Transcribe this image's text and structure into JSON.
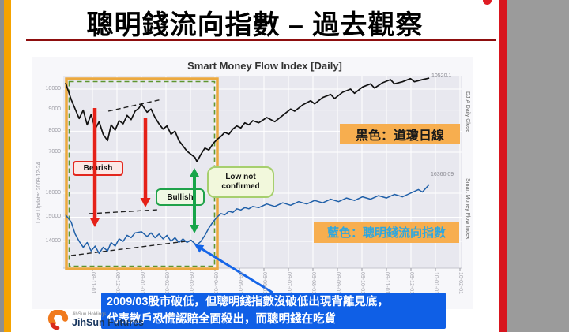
{
  "slide": {
    "title": "聰明錢流向指數 – 過去觀察"
  },
  "chart": {
    "title": "Smart Money Flow Index [Daily]",
    "left_note": "Last Update: 2009-12-24"
  },
  "chart_data": {
    "type": "line",
    "x_domain": [
      "2008-10",
      "2010-02"
    ],
    "x_ticks": [
      "08-11-01",
      "08-12-01",
      "09-01-01",
      "09-02-01",
      "09-03-01",
      "09-04-01",
      "09-05-01",
      "09-06-01",
      "09-07-01",
      "09-08-01",
      "09-09-01",
      "09-10-01",
      "09-11-01",
      "09-12-01",
      "10-01-01",
      "10-02-01"
    ],
    "top_axis": {
      "label": "DJIA Daily Close",
      "ticks": [
        10000,
        9000,
        8000,
        7000
      ],
      "last_value": "10520.1"
    },
    "bottom_axis": {
      "label": "Smart Money Flow Index",
      "ticks": [
        16000,
        15000,
        14000
      ],
      "last_value": "16360.09"
    },
    "highlight_region": {
      "x_range": [
        "2008-10",
        "2009-04"
      ],
      "note": "orange box with green dashed border around divergence period"
    },
    "series": [
      {
        "name": "DJIA Daily Close",
        "axis": "top",
        "color": "#111111",
        "points": [
          [
            0.006,
            10300
          ],
          [
            0.02,
            9500
          ],
          [
            0.04,
            8600
          ],
          [
            0.05,
            9000
          ],
          [
            0.06,
            8300
          ],
          [
            0.07,
            8800
          ],
          [
            0.08,
            8100
          ],
          [
            0.09,
            8450
          ],
          [
            0.1,
            7850
          ],
          [
            0.111,
            7550
          ],
          [
            0.12,
            8300
          ],
          [
            0.13,
            8050
          ],
          [
            0.14,
            8500
          ],
          [
            0.15,
            8350
          ],
          [
            0.16,
            8750
          ],
          [
            0.17,
            8550
          ],
          [
            0.18,
            8950
          ],
          [
            0.19,
            9100
          ],
          [
            0.196,
            9300
          ],
          [
            0.21,
            8900
          ],
          [
            0.22,
            9050
          ],
          [
            0.23,
            8650
          ],
          [
            0.24,
            8350
          ],
          [
            0.25,
            8100
          ],
          [
            0.26,
            8250
          ],
          [
            0.27,
            7850
          ],
          [
            0.28,
            8000
          ],
          [
            0.29,
            7550
          ],
          [
            0.3,
            7300
          ],
          [
            0.31,
            7050
          ],
          [
            0.32,
            6900
          ],
          [
            0.33,
            6750
          ],
          [
            0.335,
            6550
          ],
          [
            0.345,
            6900
          ],
          [
            0.355,
            7200
          ],
          [
            0.365,
            7100
          ],
          [
            0.375,
            7400
          ],
          [
            0.385,
            7600
          ],
          [
            0.395,
            7750
          ],
          [
            0.405,
            7950
          ],
          [
            0.415,
            7850
          ],
          [
            0.425,
            8100
          ],
          [
            0.435,
            8250
          ],
          [
            0.445,
            8150
          ],
          [
            0.455,
            8400
          ],
          [
            0.465,
            8300
          ],
          [
            0.475,
            8500
          ],
          [
            0.49,
            8400
          ],
          [
            0.51,
            8650
          ],
          [
            0.53,
            8450
          ],
          [
            0.55,
            8750
          ],
          [
            0.57,
            9050
          ],
          [
            0.58,
            8950
          ],
          [
            0.6,
            9250
          ],
          [
            0.62,
            9450
          ],
          [
            0.63,
            9300
          ],
          [
            0.65,
            9600
          ],
          [
            0.67,
            9750
          ],
          [
            0.68,
            9550
          ],
          [
            0.7,
            9850
          ],
          [
            0.72,
            10000
          ],
          [
            0.73,
            9800
          ],
          [
            0.75,
            10100
          ],
          [
            0.77,
            10250
          ],
          [
            0.78,
            10050
          ],
          [
            0.8,
            10300
          ],
          [
            0.82,
            10450
          ],
          [
            0.83,
            10250
          ],
          [
            0.85,
            10350
          ],
          [
            0.87,
            10500
          ],
          [
            0.88,
            10350
          ],
          [
            0.9,
            10450
          ],
          [
            0.917,
            10520
          ]
        ]
      },
      {
        "name": "Smart Money Flow Index",
        "axis": "bottom",
        "color": "#1F5FA8",
        "points": [
          [
            0.006,
            15100
          ],
          [
            0.02,
            14800
          ],
          [
            0.03,
            14300
          ],
          [
            0.04,
            14000
          ],
          [
            0.05,
            13750
          ],
          [
            0.06,
            13950
          ],
          [
            0.07,
            13600
          ],
          [
            0.08,
            13800
          ],
          [
            0.09,
            13500
          ],
          [
            0.1,
            13750
          ],
          [
            0.111,
            13600
          ],
          [
            0.12,
            13950
          ],
          [
            0.13,
            13800
          ],
          [
            0.14,
            14100
          ],
          [
            0.15,
            14000
          ],
          [
            0.16,
            14250
          ],
          [
            0.17,
            14150
          ],
          [
            0.18,
            14350
          ],
          [
            0.196,
            14400
          ],
          [
            0.21,
            14200
          ],
          [
            0.22,
            14350
          ],
          [
            0.23,
            14150
          ],
          [
            0.24,
            14300
          ],
          [
            0.25,
            14100
          ],
          [
            0.26,
            14250
          ],
          [
            0.27,
            14000
          ],
          [
            0.28,
            14150
          ],
          [
            0.29,
            13950
          ],
          [
            0.3,
            14100
          ],
          [
            0.31,
            13950
          ],
          [
            0.32,
            14050
          ],
          [
            0.33,
            13900
          ],
          [
            0.335,
            13850
          ],
          [
            0.345,
            14000
          ],
          [
            0.355,
            14250
          ],
          [
            0.365,
            14550
          ],
          [
            0.375,
            14800
          ],
          [
            0.385,
            15000
          ],
          [
            0.395,
            15150
          ],
          [
            0.405,
            15100
          ],
          [
            0.415,
            15250
          ],
          [
            0.425,
            15200
          ],
          [
            0.435,
            15350
          ],
          [
            0.445,
            15300
          ],
          [
            0.455,
            15400
          ],
          [
            0.465,
            15350
          ],
          [
            0.475,
            15450
          ],
          [
            0.49,
            15400
          ],
          [
            0.51,
            15550
          ],
          [
            0.53,
            15450
          ],
          [
            0.55,
            15600
          ],
          [
            0.57,
            15500
          ],
          [
            0.59,
            15650
          ],
          [
            0.61,
            15550
          ],
          [
            0.63,
            15700
          ],
          [
            0.65,
            15600
          ],
          [
            0.67,
            15750
          ],
          [
            0.69,
            15650
          ],
          [
            0.71,
            15800
          ],
          [
            0.73,
            15700
          ],
          [
            0.75,
            15850
          ],
          [
            0.77,
            15750
          ],
          [
            0.79,
            15900
          ],
          [
            0.81,
            15800
          ],
          [
            0.83,
            15950
          ],
          [
            0.85,
            15850
          ],
          [
            0.87,
            16000
          ],
          [
            0.89,
            16150
          ],
          [
            0.9,
            16050
          ],
          [
            0.917,
            16360
          ]
        ]
      }
    ]
  },
  "annotations": {
    "bearish_label": "Bearish",
    "bullish_label": "Bullish",
    "low_not_line1": "Low not",
    "low_not_line2": "confirmed",
    "legend_black": "黑色：道瓊日線",
    "legend_blue": "藍色：聰明錢流向指數",
    "callout_line1": "2009/03股市破低，但聰明錢指數沒破低出現背離見底，",
    "callout_line2": "代表散戶恐慌認賠全面殺出，而聰明錢在吃貨"
  },
  "footer": {
    "logo_holdings": "JihSun Holdings",
    "logo_company": "JihSun Futures"
  },
  "colors": {
    "left_bar": "#F5A300",
    "right_bar": "#D8151E",
    "title_underline": "#8E0E0E",
    "plot_bg": "#E8E8EF",
    "figure_bg": "#F7F7FA",
    "legend_bg": "#F7AE4F",
    "legend_blue_text": "#2FA7DF",
    "callout_bg": "#0F5FE6",
    "bearish_red": "#E3261D",
    "bullish_green": "#1FA24A",
    "lownot_green": "#A6CF6E",
    "highlight_orange": "#ECA93F",
    "highlight_green_dash": "#5E9530",
    "djia_line": "#111111",
    "smfi_line": "#1F5FA8",
    "blue_arrow": "#1565E8"
  }
}
